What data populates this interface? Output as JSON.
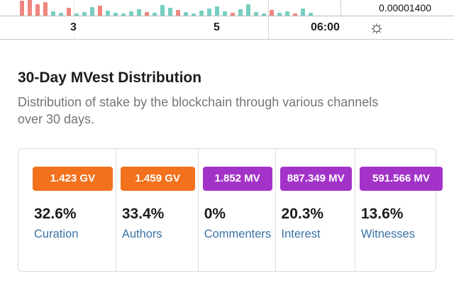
{
  "chart": {
    "price_label": "0.00001400",
    "time_labels": [
      "3",
      "5",
      "06:00"
    ],
    "sun_icon": "☼"
  },
  "section": {
    "title": "30-Day MVest Distribution",
    "subtitle": "Distribution of stake by the blockchain through various channels over 30 days."
  },
  "distribution": {
    "columns": [
      {
        "amount": "1.423 GV",
        "percent": "32.6%",
        "label": "Curation",
        "color": "#f2711c"
      },
      {
        "amount": "1.459 GV",
        "percent": "33.4%",
        "label": "Authors",
        "color": "#f2711c"
      },
      {
        "amount": "1.852 MV",
        "percent": "0%",
        "label": "Commenters",
        "color": "#a333c8"
      },
      {
        "amount": "887.349 MV",
        "percent": "20.3%",
        "label": "Interest",
        "color": "#a333c8"
      },
      {
        "amount": "591.566 MV",
        "percent": "13.6%",
        "label": "Witnesses",
        "color": "#a333c8"
      }
    ]
  },
  "chart_data": {
    "type": "bar",
    "title": "Partially visible price/volume chart strip",
    "y_axis_price_label": "0.00001400",
    "x_tick_labels": [
      "3",
      "5",
      "06:00"
    ],
    "volume_bars": [
      {
        "h": 21,
        "c": "red"
      },
      {
        "h": 23,
        "c": "red"
      },
      {
        "h": 16,
        "c": "red"
      },
      {
        "h": 19,
        "c": "red"
      },
      {
        "h": 6,
        "c": "teal"
      },
      {
        "h": 4,
        "c": "teal"
      },
      {
        "h": 11,
        "c": "red"
      },
      {
        "h": 3,
        "c": "teal"
      },
      {
        "h": 5,
        "c": "teal"
      },
      {
        "h": 12,
        "c": "teal"
      },
      {
        "h": 14,
        "c": "red"
      },
      {
        "h": 7,
        "c": "teal"
      },
      {
        "h": 4,
        "c": "teal"
      },
      {
        "h": 3,
        "c": "teal"
      },
      {
        "h": 6,
        "c": "teal"
      },
      {
        "h": 9,
        "c": "teal"
      },
      {
        "h": 5,
        "c": "red"
      },
      {
        "h": 4,
        "c": "teal"
      },
      {
        "h": 15,
        "c": "teal"
      },
      {
        "h": 11,
        "c": "teal"
      },
      {
        "h": 8,
        "c": "red"
      },
      {
        "h": 5,
        "c": "teal"
      },
      {
        "h": 3,
        "c": "teal"
      },
      {
        "h": 7,
        "c": "teal"
      },
      {
        "h": 10,
        "c": "teal"
      },
      {
        "h": 13,
        "c": "teal"
      },
      {
        "h": 6,
        "c": "teal"
      },
      {
        "h": 4,
        "c": "red"
      },
      {
        "h": 9,
        "c": "teal"
      },
      {
        "h": 16,
        "c": "teal"
      },
      {
        "h": 5,
        "c": "teal"
      },
      {
        "h": 3,
        "c": "teal"
      },
      {
        "h": 8,
        "c": "red"
      },
      {
        "h": 4,
        "c": "teal"
      },
      {
        "h": 6,
        "c": "teal"
      },
      {
        "h": 3,
        "c": "red"
      },
      {
        "h": 10,
        "c": "teal"
      },
      {
        "h": 4,
        "c": "teal"
      }
    ]
  },
  "colors": {
    "orange_badge": "#f2711c",
    "purple_badge": "#a333c8",
    "link_blue": "#3a72a5",
    "bar_red": "#ef867f",
    "bar_teal": "#76cfc0"
  }
}
